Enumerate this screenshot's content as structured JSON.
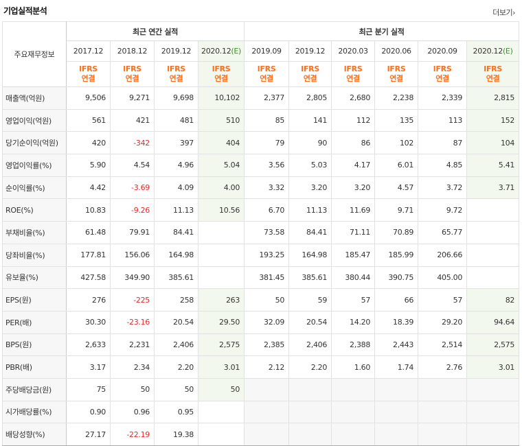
{
  "header": {
    "title": "기업실적분석",
    "more_label": "더보기"
  },
  "table": {
    "corner_label": "주요재무정보",
    "group_annual": "최근 연간 실적",
    "group_quarter": "최근 분기 실적",
    "periods": [
      "2017.12",
      "2018.12",
      "2019.12",
      "2020.12",
      "2019.09",
      "2019.12",
      "2020.03",
      "2020.06",
      "2020.09",
      "2020.12"
    ],
    "estimate_suffix": "(E)",
    "ifrs_top": "IFRS",
    "ifrs_bottom": "연결",
    "rows": [
      {
        "label": "매출액(억원)",
        "values": [
          "9,506",
          "9,271",
          "9,698",
          "10,102",
          "2,377",
          "2,805",
          "2,680",
          "2,238",
          "2,339",
          "2,815"
        ]
      },
      {
        "label": "영업이익(억원)",
        "values": [
          "561",
          "421",
          "481",
          "510",
          "85",
          "141",
          "112",
          "135",
          "113",
          "152"
        ]
      },
      {
        "label": "당기순이익(억원)",
        "values": [
          "420",
          "-342",
          "397",
          "404",
          "79",
          "90",
          "86",
          "102",
          "87",
          "104"
        ]
      },
      {
        "label": "영업이익률(%)",
        "values": [
          "5.90",
          "4.54",
          "4.96",
          "5.04",
          "3.56",
          "5.03",
          "4.17",
          "6.01",
          "4.85",
          "5.41"
        ]
      },
      {
        "label": "순이익률(%)",
        "values": [
          "4.42",
          "-3.69",
          "4.09",
          "4.00",
          "3.32",
          "3.20",
          "3.20",
          "4.57",
          "3.72",
          "3.71"
        ]
      },
      {
        "label": "ROE(%)",
        "values": [
          "10.83",
          "-9.26",
          "11.13",
          "10.56",
          "6.70",
          "11.13",
          "11.69",
          "9.71",
          "9.72",
          ""
        ]
      },
      {
        "label": "부채비율(%)",
        "values": [
          "61.48",
          "79.91",
          "84.41",
          "",
          "73.58",
          "84.41",
          "71.11",
          "70.89",
          "65.77",
          ""
        ]
      },
      {
        "label": "당좌비율(%)",
        "values": [
          "177.81",
          "156.06",
          "164.98",
          "",
          "193.25",
          "164.98",
          "185.47",
          "185.99",
          "206.66",
          ""
        ]
      },
      {
        "label": "유보율(%)",
        "values": [
          "427.58",
          "349.90",
          "385.61",
          "",
          "381.45",
          "385.61",
          "380.44",
          "390.75",
          "405.00",
          ""
        ]
      },
      {
        "label": "EPS(원)",
        "values": [
          "276",
          "-225",
          "258",
          "263",
          "50",
          "59",
          "57",
          "66",
          "57",
          "82"
        ]
      },
      {
        "label": "PER(배)",
        "values": [
          "30.30",
          "-23.16",
          "20.54",
          "29.50",
          "32.09",
          "20.54",
          "14.20",
          "18.39",
          "29.20",
          "94.64"
        ]
      },
      {
        "label": "BPS(원)",
        "values": [
          "2,633",
          "2,231",
          "2,406",
          "2,575",
          "2,385",
          "2,406",
          "2,388",
          "2,443",
          "2,514",
          "2,575"
        ]
      },
      {
        "label": "PBR(배)",
        "values": [
          "3.17",
          "2.34",
          "2.20",
          "3.01",
          "2.12",
          "2.20",
          "1.60",
          "1.74",
          "2.76",
          "3.01"
        ]
      },
      {
        "label": "주당배당금(원)",
        "values": [
          "75",
          "50",
          "50",
          "50",
          "",
          "",
          "",
          "",
          "",
          ""
        ]
      },
      {
        "label": "시가배당률(%)",
        "values": [
          "0.90",
          "0.96",
          "0.95",
          "",
          "",
          "",
          "",
          "",
          "",
          ""
        ]
      },
      {
        "label": "배당성향(%)",
        "values": [
          "27.17",
          "-22.19",
          "19.38",
          "",
          "",
          "",
          "",
          "",
          "",
          ""
        ]
      }
    ]
  }
}
